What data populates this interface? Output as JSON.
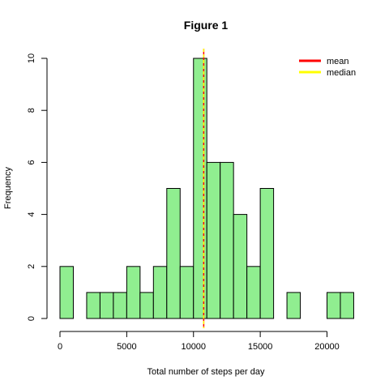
{
  "chart_data": {
    "type": "bar",
    "title": "Figure 1",
    "xlabel": "Total number of steps per day",
    "ylabel": "Frequency",
    "bin_width": 1000,
    "bin_start": 0,
    "values": [
      2,
      0,
      1,
      1,
      1,
      2,
      1,
      2,
      5,
      2,
      10,
      6,
      6,
      4,
      2,
      5,
      0,
      1,
      0,
      0,
      1,
      1
    ],
    "bar_color": "#90EE90",
    "xlim": [
      0,
      22000
    ],
    "ylim": [
      0,
      10
    ],
    "xticks": [
      0,
      5000,
      10000,
      15000,
      20000
    ],
    "yticks": [
      0,
      2,
      4,
      6,
      8,
      10
    ],
    "mean": 10766,
    "median": 10765,
    "lines": [
      {
        "name": "mean",
        "color": "#FF0000",
        "value": 10766
      },
      {
        "name": "median",
        "color": "#FFFF00",
        "value": 10765
      }
    ],
    "legend_position": "top-right"
  }
}
